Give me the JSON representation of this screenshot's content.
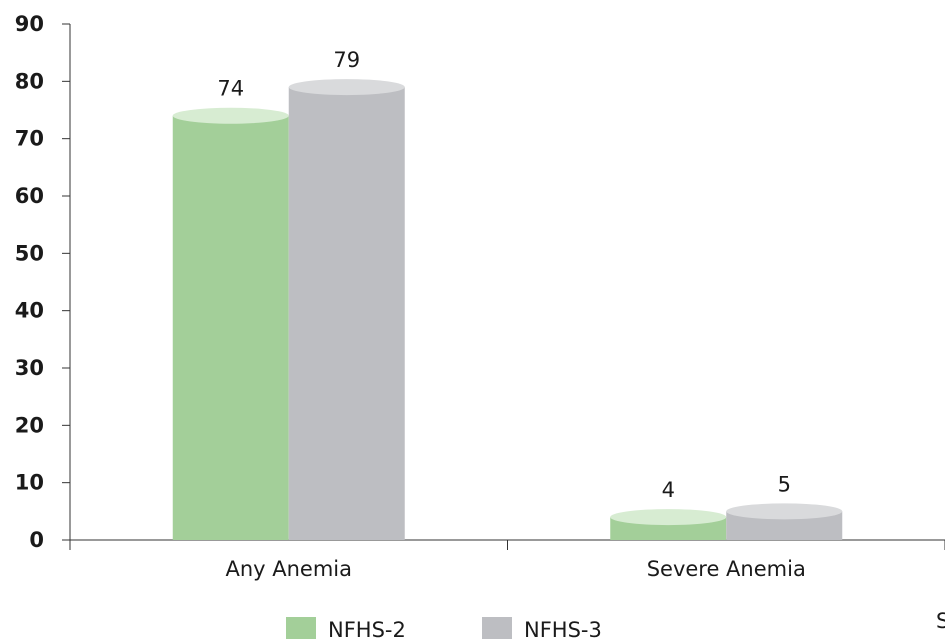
{
  "chart_data": {
    "type": "bar",
    "title": "",
    "xlabel": "",
    "ylabel": "",
    "categories": [
      "Any Anemia",
      "Severe Anemia"
    ],
    "series": [
      {
        "name": "NFHS-2",
        "values": [
          74,
          4
        ],
        "color": "#a3cf99",
        "cap_color": "#d7ecd2"
      },
      {
        "name": "NFHS-3",
        "values": [
          79,
          5
        ],
        "color": "#bdbec2",
        "cap_color": "#d9dadc"
      }
    ],
    "data_labels": [
      [
        "74",
        "4"
      ],
      [
        "79",
        "5"
      ]
    ],
    "ylim": [
      0,
      90
    ],
    "yticks": [
      0,
      10,
      20,
      30,
      40,
      50,
      60,
      70,
      80,
      90
    ],
    "grid": false,
    "legend_position": "bottom"
  },
  "corner_text": "S"
}
